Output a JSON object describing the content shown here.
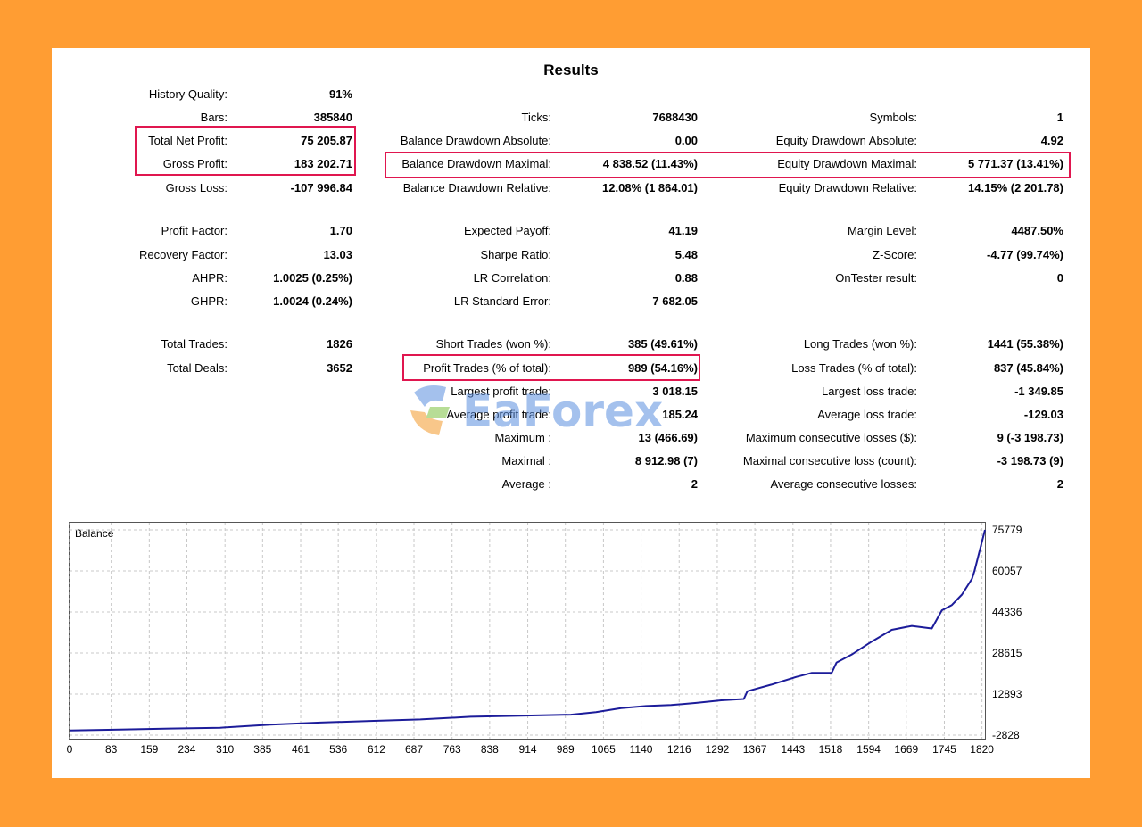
{
  "title": "Results",
  "stats": [
    {
      "label": "History Quality:",
      "value": "91%"
    },
    {
      "label": "Bars:",
      "value": "385840"
    },
    {
      "label": "Total Net Profit:",
      "value": "75 205.87"
    },
    {
      "label": "Gross Profit:",
      "value": "183 202.71"
    },
    {
      "label": "Gross Loss:",
      "value": "-107 996.84"
    },
    {
      "label": "Profit Factor:",
      "value": "1.70"
    },
    {
      "label": "Recovery Factor:",
      "value": "13.03"
    },
    {
      "label": "AHPR:",
      "value": "1.0025 (0.25%)"
    },
    {
      "label": "GHPR:",
      "value": "1.0024 (0.24%)"
    },
    {
      "label": "Total Trades:",
      "value": "1826"
    },
    {
      "label": "Total Deals:",
      "value": "3652"
    },
    {
      "label": "Ticks:",
      "value": "7688430"
    },
    {
      "label": "Balance Drawdown Absolute:",
      "value": "0.00"
    },
    {
      "label": "Balance Drawdown Maximal:",
      "value": "4 838.52 (11.43%)"
    },
    {
      "label": "Balance Drawdown Relative:",
      "value": "12.08% (1 864.01)"
    },
    {
      "label": "Expected Payoff:",
      "value": "41.19"
    },
    {
      "label": "Sharpe Ratio:",
      "value": "5.48"
    },
    {
      "label": "LR Correlation:",
      "value": "0.88"
    },
    {
      "label": "LR Standard Error:",
      "value": "7 682.05"
    },
    {
      "label": "Short Trades (won %):",
      "value": "385 (49.61%)"
    },
    {
      "label": "Profit Trades (% of total):",
      "value": "989 (54.16%)"
    },
    {
      "label": "Largest profit trade:",
      "value": "3 018.15"
    },
    {
      "label": "Average profit trade:",
      "value": "185.24"
    },
    {
      "label": "Maximum :",
      "value": "13 (466.69)"
    },
    {
      "label": "Maximal :",
      "value": "8 912.98 (7)"
    },
    {
      "label": "Average :",
      "value": "2"
    },
    {
      "label": "Symbols:",
      "value": "1"
    },
    {
      "label": "Equity Drawdown Absolute:",
      "value": "4.92"
    },
    {
      "label": "Equity Drawdown Maximal:",
      "value": "5 771.37 (13.41%)"
    },
    {
      "label": "Equity Drawdown Relative:",
      "value": "14.15% (2 201.78)"
    },
    {
      "label": "Margin Level:",
      "value": "4487.50%"
    },
    {
      "label": "Z-Score:",
      "value": "-4.77 (99.74%)"
    },
    {
      "label": "OnTester result:",
      "value": "0"
    },
    {
      "label": "Long Trades (won %):",
      "value": "1441 (55.38%)"
    },
    {
      "label": "Loss Trades (% of total):",
      "value": "837 (45.84%)"
    },
    {
      "label": "Largest loss trade:",
      "value": "-1 349.85"
    },
    {
      "label": "Average loss trade:",
      "value": "-129.03"
    },
    {
      "label": "Maximum consecutive losses ($):",
      "value": "9 (-3 198.73)"
    },
    {
      "label": "Maximal consecutive loss (count):",
      "value": "-3 198.73 (9)"
    },
    {
      "label": "Average consecutive losses:",
      "value": "2"
    }
  ],
  "watermark": {
    "text": "EaForex"
  },
  "chart_data": {
    "type": "line",
    "title": "Balance",
    "series": [
      {
        "color": "#1C1C9A",
        "x": [
          0,
          100,
          200,
          300,
          400,
          500,
          600,
          700,
          800,
          900,
          1000,
          1050,
          1100,
          1150,
          1200,
          1250,
          1300,
          1345,
          1352,
          1400,
          1450,
          1480,
          1520,
          1530,
          1560,
          1600,
          1640,
          1680,
          1720,
          1740,
          1760,
          1780,
          1800,
          1805,
          1826
        ],
        "y": [
          -1000,
          -700,
          -300,
          0,
          1200,
          2000,
          2600,
          3200,
          4200,
          4600,
          5000,
          6000,
          7500,
          8300,
          8700,
          9500,
          10500,
          11000,
          14000,
          16500,
          19500,
          21000,
          21000,
          25000,
          28000,
          33000,
          37500,
          39000,
          38000,
          45000,
          47000,
          51000,
          57000,
          60000,
          75779
        ]
      }
    ],
    "y_ticks": [
      "75779",
      "60057",
      "44336",
      "28615",
      "12893",
      "-2828"
    ],
    "x_ticks": [
      "0",
      "83",
      "159",
      "234",
      "310",
      "385",
      "461",
      "536",
      "612",
      "687",
      "763",
      "838",
      "914",
      "989",
      "1065",
      "1140",
      "1216",
      "1292",
      "1367",
      "1443",
      "1518",
      "1594",
      "1669",
      "1745",
      "1820"
    ],
    "xlim": [
      0,
      1826
    ],
    "ylim": [
      -2828,
      75779
    ],
    "grid": true
  }
}
